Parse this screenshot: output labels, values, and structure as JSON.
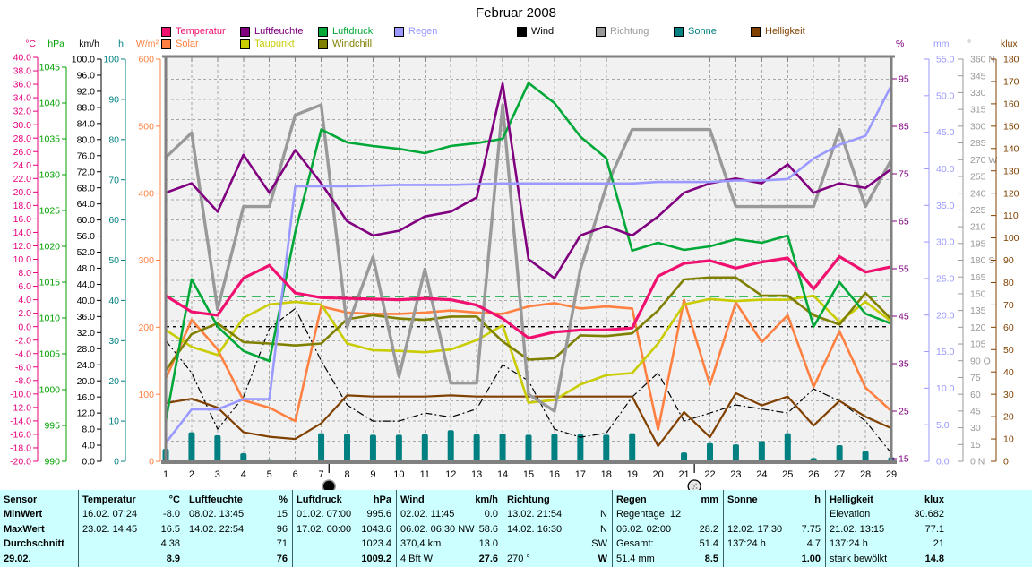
{
  "title": "Februar 2008",
  "colors": {
    "table_bg": "#CCFFFF",
    "plot_bg": "#F1F1F1",
    "frame": "#808080",
    "grid": "#A8A8A8"
  },
  "legend": {
    "row1": [
      {
        "label": "Temperatur",
        "color": "#F01070"
      },
      {
        "label": "Luftfeuchte",
        "color": "#800080"
      },
      {
        "label": "Luftdruck",
        "color": "#00A838"
      },
      {
        "label": "Regen",
        "color": "#9999FF"
      },
      {
        "label": "Wind",
        "color": "#000000"
      },
      {
        "label": "Richtung",
        "color": "#999999"
      },
      {
        "label": "Sonne",
        "color": "#008080"
      },
      {
        "label": "Helligkeit",
        "color": "#804000"
      }
    ],
    "row2": [
      {
        "label": "Solar",
        "color": "#FF8040"
      },
      {
        "label": "Taupunkt",
        "color": "#C8CC00"
      },
      {
        "label": "Windchill",
        "color": "#808000"
      }
    ]
  },
  "axes": [
    {
      "unit": "°C",
      "color": "#E8007C",
      "min": -20,
      "max": 40,
      "step": 2,
      "decimals": 1
    },
    {
      "unit": "hPa",
      "color": "#00A000",
      "min": 990,
      "max": 1045,
      "step": 5,
      "decimals": 0
    },
    {
      "unit": "km/h",
      "color": "#000000",
      "min": 0,
      "max": 100,
      "step": 4,
      "decimals": 1
    },
    {
      "unit": "h",
      "color": "#008080",
      "min": 0,
      "max": 100,
      "step": 10,
      "decimals": 0
    },
    {
      "unit": "W/m²",
      "color": "#FF8040",
      "min": 0,
      "max": 600,
      "step": 100,
      "decimals": 0
    },
    {
      "unit": "%",
      "color": "#800080",
      "min": 15,
      "max": 95,
      "step": 10,
      "decimals": 0
    },
    {
      "unit": "mm",
      "color": "#9999FF",
      "min": 0,
      "max": 55,
      "step": 5,
      "decimals": 1
    },
    {
      "unit": "°",
      "color": "#999999",
      "min": 0,
      "max": 360,
      "step": 15,
      "decimals": 0,
      "special": {
        "360": "360 N",
        "270": "270 W",
        "180": "180 S",
        "90": "90 O",
        "0": "0  N"
      }
    },
    {
      "unit": "klux",
      "color": "#804000",
      "min": 0,
      "max": 180,
      "step": 10,
      "decimals": 0
    }
  ],
  "chart_data": {
    "type": "line",
    "title": "Februar 2008",
    "x_days": [
      1,
      2,
      3,
      4,
      5,
      6,
      7,
      8,
      9,
      10,
      11,
      12,
      13,
      14,
      15,
      16,
      17,
      18,
      19,
      20,
      21,
      22,
      23,
      24,
      25,
      26,
      27,
      28,
      29
    ],
    "series": [
      {
        "name": "Temperatur",
        "unit": "°C",
        "color": "#F01070",
        "width": 3.2,
        "style": "line",
        "values": [
          4.6,
          2.2,
          1.7,
          7.2,
          9.1,
          5.0,
          4.3,
          4.2,
          4.1,
          4.0,
          4.2,
          4.0,
          3.2,
          1.2,
          -1.7,
          -0.8,
          -0.5,
          -0.5,
          -0.2,
          7.5,
          9.4,
          9.8,
          8.7,
          9.6,
          10.2,
          5.6,
          10.4,
          8.1,
          8.9
        ]
      },
      {
        "name": "Solar",
        "unit": "W/m²",
        "color": "#FF8040",
        "width": 2.6,
        "style": "line",
        "values": [
          123,
          211,
          167,
          91,
          80,
          60,
          231,
          222,
          220,
          220,
          222,
          225,
          222,
          220,
          231,
          236,
          228,
          231,
          228,
          47,
          241,
          114,
          237,
          178,
          218,
          111,
          194,
          110,
          75
        ]
      },
      {
        "name": "Luftfeuchte",
        "unit": "%",
        "color": "#800080",
        "width": 2.6,
        "style": "line",
        "values": [
          71,
          73,
          67,
          79,
          71,
          80,
          73,
          65,
          62,
          63,
          66,
          67,
          70,
          94,
          57,
          53,
          62,
          64,
          62,
          66,
          71,
          73,
          74,
          73,
          77,
          71,
          73,
          72,
          76
        ]
      },
      {
        "name": "Taupunkt",
        "unit": "°C",
        "color": "#C8CC00",
        "width": 2.6,
        "style": "line",
        "values": [
          -0.5,
          -3.0,
          -4.2,
          1.3,
          3.3,
          3.7,
          3.3,
          -2.5,
          -3.5,
          -3.6,
          -3.8,
          -3.4,
          -2.0,
          0.2,
          -11.3,
          -10.9,
          -8.6,
          -7.2,
          -6.9,
          -2.5,
          3.3,
          4.1,
          3.8,
          4.0,
          4.0,
          4.6,
          0.7,
          3.7,
          0.8
        ]
      },
      {
        "name": "Luftdruck",
        "unit": "hPa",
        "color": "#00A838",
        "width": 2.6,
        "style": "line",
        "values": [
          995.6,
          1015.4,
          1008.8,
          1005.4,
          1004.0,
          1022.0,
          1036.3,
          1034.5,
          1034.0,
          1033.6,
          1033.0,
          1034.0,
          1034.4,
          1035.0,
          1042.8,
          1040.0,
          1035.3,
          1032.3,
          1019.4,
          1020.5,
          1019.5,
          1020.0,
          1021.0,
          1020.5,
          1021.5,
          1008.8,
          1015.0,
          1010.6,
          1009.2
        ]
      },
      {
        "name": "Windchill",
        "unit": "°C",
        "color": "#808000",
        "width": 2.6,
        "style": "line",
        "values": [
          -6.5,
          -1.1,
          0.5,
          -2.3,
          -2.5,
          -2.8,
          -2.5,
          1.1,
          1.7,
          1.2,
          1.0,
          1.5,
          1.5,
          -2.2,
          -4.9,
          -4.7,
          -1.3,
          -1.4,
          -1.0,
          2.4,
          7.0,
          7.3,
          7.3,
          4.6,
          4.6,
          1.7,
          0.3,
          5.0,
          1.1
        ]
      },
      {
        "name": "Regen",
        "unit": "mm",
        "color": "#9999FF",
        "width": 2.6,
        "style": "line",
        "values": [
          2.5,
          7.1,
          7.1,
          8.5,
          8.5,
          37.6,
          37.6,
          37.6,
          37.7,
          37.8,
          37.8,
          37.8,
          37.9,
          38.0,
          38.0,
          38.0,
          38.0,
          38.0,
          38.0,
          38.2,
          38.2,
          38.2,
          38.4,
          38.4,
          38.6,
          41.4,
          43.3,
          44.5,
          51.4
        ]
      },
      {
        "name": "Wind",
        "unit": "km/h",
        "color": "#000000",
        "width": 1.2,
        "style": "dashdot",
        "values": [
          30,
          22,
          8,
          16,
          33,
          38,
          25,
          14,
          10,
          10,
          12,
          11,
          13,
          24,
          20,
          8,
          6,
          7,
          16,
          22,
          10,
          12,
          14,
          13,
          12,
          18,
          15,
          10,
          2
        ]
      },
      {
        "name": "Richtung",
        "unit": "°",
        "color": "#999999",
        "width": 3.4,
        "style": "line",
        "values": [
          272,
          294,
          136,
          228,
          228,
          310,
          319,
          120,
          183,
          76,
          172,
          70,
          70,
          319,
          60,
          45,
          172,
          246,
          297,
          297,
          297,
          297,
          228,
          228,
          228,
          228,
          297,
          228,
          270
        ]
      },
      {
        "name": "Sonne",
        "unit": "h",
        "color": "#008080",
        "style": "bar",
        "values": [
          3.1,
          7.2,
          6.5,
          2.0,
          0.5,
          0.0,
          7.0,
          6.8,
          6.6,
          6.6,
          6.7,
          7.75,
          6.7,
          6.9,
          6.6,
          6.8,
          6.7,
          6.6,
          7.0,
          0.3,
          2.2,
          4.5,
          4.2,
          5.0,
          7.0,
          0.8,
          4.0,
          2.5,
          1.0
        ]
      },
      {
        "name": "Helligkeit",
        "unit": "klux",
        "color": "#804000",
        "width": 2.2,
        "style": "line",
        "values": [
          26,
          28,
          24,
          13,
          11,
          10,
          17,
          29.5,
          29,
          29,
          29,
          29.5,
          29,
          29,
          29,
          29,
          29,
          29,
          29,
          6.8,
          22,
          10.8,
          30.5,
          25,
          29,
          16,
          27,
          20,
          14.8
        ]
      }
    ],
    "reference_lines": [
      {
        "value": 1013,
        "unit": "hPa",
        "color": "#00A838",
        "dash": "10 6"
      },
      {
        "value": 0,
        "unit": "°C",
        "color": "#000000",
        "dash": "4 4"
      }
    ],
    "moons": [
      {
        "day": 7.3,
        "type": "new-moon"
      },
      {
        "day": 21.4,
        "type": "full-moon"
      }
    ]
  },
  "table": {
    "row_labels": [
      "Sensor",
      "MinWert",
      "MaxWert",
      "Durchschnitt",
      "29.02."
    ],
    "columns": [
      {
        "name": "Temperatur",
        "unit": "°C",
        "rows": [
          [
            "16.02.  07:24",
            "-8.0"
          ],
          [
            "23.02.  14:45",
            "16.5"
          ],
          [
            "",
            "4.38"
          ],
          [
            "",
            "8.9"
          ]
        ]
      },
      {
        "name": "Luftfeuchte",
        "unit": "%",
        "rows": [
          [
            "08.02.  13:45",
            "15"
          ],
          [
            "14.02.  22:54",
            "96"
          ],
          [
            "",
            "71"
          ],
          [
            "",
            "76"
          ]
        ]
      },
      {
        "name": "Luftdruck",
        "unit": "hPa",
        "rows": [
          [
            "01.02.  07:00",
            "995.6"
          ],
          [
            "17.02.  00:00",
            "1043.6"
          ],
          [
            "",
            "1023.4"
          ],
          [
            "",
            "1009.2"
          ]
        ]
      },
      {
        "name": "Wind",
        "unit": "km/h",
        "rows": [
          [
            "02.02.  11:45",
            "0.0"
          ],
          [
            "06.02.  06:30 NW",
            "58.6"
          ],
          [
            "370,4 km",
            "13.0"
          ],
          [
            "4 Bft W",
            "27.6"
          ]
        ]
      },
      {
        "name": "Richtung",
        "unit": "",
        "rows": [
          [
            "13.02.  21:54",
            "N"
          ],
          [
            "14.02.  16:30",
            "N"
          ],
          [
            "",
            "SW"
          ],
          [
            "270 °",
            "W"
          ]
        ]
      },
      {
        "name": "Regen",
        "unit": "mm",
        "rows": [
          [
            "Regentage: 12",
            ""
          ],
          [
            "06.02.  02:00",
            "28.2"
          ],
          [
            "Gesamt:",
            "51.4"
          ],
          [
            "51.4 mm",
            "8.5"
          ]
        ]
      },
      {
        "name": "Sonne",
        "unit": "h",
        "rows": [
          [
            "",
            ""
          ],
          [
            "12.02.  17:30",
            "7.75"
          ],
          [
            "137:24 h",
            "4.7"
          ],
          [
            "",
            "1.00"
          ]
        ]
      },
      {
        "name": "Helligkeit",
        "unit": "klux",
        "rows": [
          [
            "Elevation",
            "30.682"
          ],
          [
            "21.02.  13:15",
            "77.1"
          ],
          [
            "137:24 h",
            "21"
          ],
          [
            "stark bewölkt",
            "14.8"
          ]
        ]
      }
    ]
  }
}
